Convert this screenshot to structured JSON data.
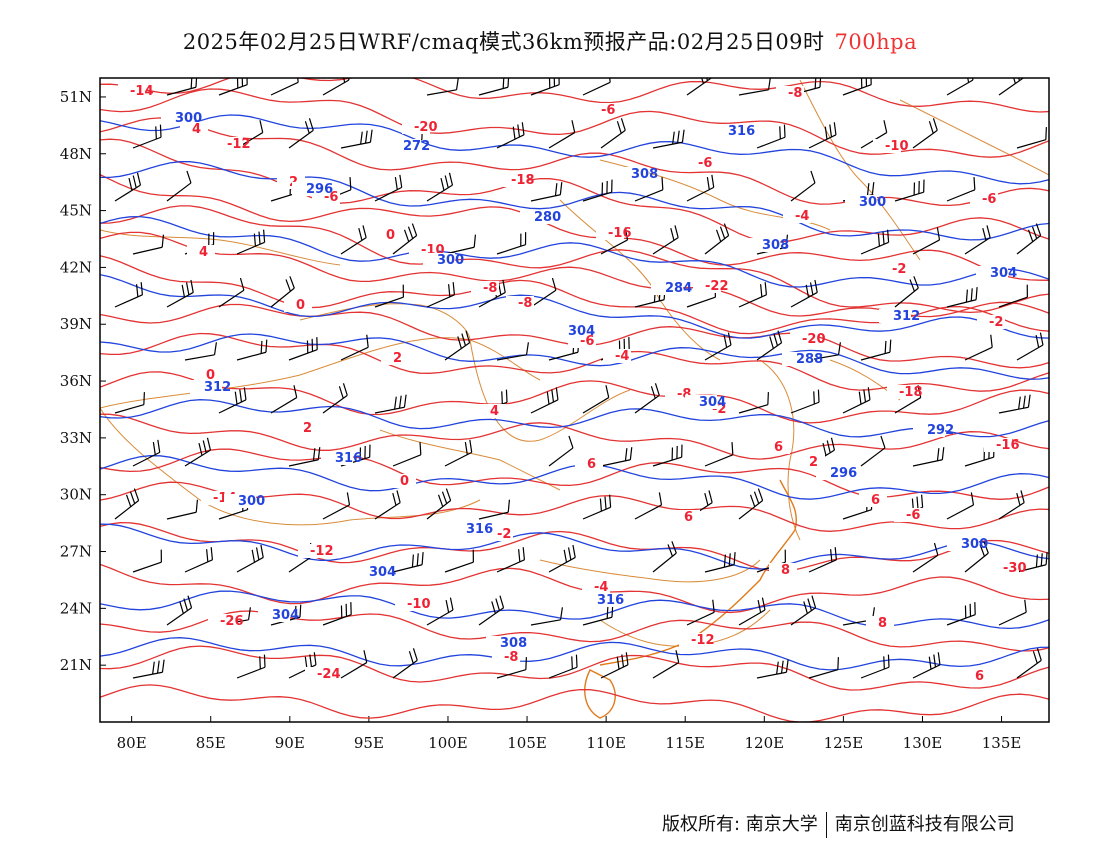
{
  "title": {
    "main": "2025年02月25日WRF/cmaq模式36km预报产品:02月25日09时",
    "level": "700hpa",
    "level_color": "#e33333"
  },
  "axes": {
    "lat_labels": [
      "51N",
      "48N",
      "45N",
      "42N",
      "39N",
      "36N",
      "33N",
      "30N",
      "27N",
      "24N",
      "21N"
    ],
    "lon_labels": [
      "80E",
      "85E",
      "90E",
      "95E",
      "100E",
      "105E",
      "110E",
      "115E",
      "120E",
      "125E",
      "130E",
      "135E"
    ]
  },
  "map": {
    "lon_range": [
      78,
      138
    ],
    "lat_range": [
      18,
      52
    ],
    "temperature_color": "#e33333",
    "height_color": "#2244dd",
    "border_color": "#d98c3a",
    "wind_barb_color": "#000000"
  },
  "isotherm_labels": [
    "-14",
    "-12",
    "-6",
    "-10",
    "-8",
    "-4",
    "-2",
    "2",
    "-6",
    "-30",
    "-26",
    "-24",
    "-20",
    "-18",
    "-16",
    "-22",
    "-20",
    "-18",
    "-16",
    "-14",
    "-12",
    "-10",
    "-8",
    "-6",
    "-6",
    "-4",
    "-2",
    "-2",
    "0",
    "2",
    "0",
    "-2",
    "-4",
    "-12",
    "-8",
    "-10",
    "-6",
    "4",
    "0",
    "2",
    "4",
    "6",
    "6",
    "8",
    "8",
    "6",
    "4",
    "2",
    "0",
    "-8",
    "-6",
    "-8",
    "6",
    "6"
  ],
  "height_labels": [
    "300",
    "296",
    "300",
    "304",
    "304",
    "296",
    "300",
    "304",
    "272",
    "280",
    "284",
    "288",
    "292",
    "300",
    "304",
    "308",
    "308",
    "308",
    "312",
    "312",
    "316",
    "316",
    "316",
    "316",
    "300",
    "304"
  ],
  "footer": {
    "left": "版权所有: 南京大学",
    "right": "南京创蓝科技有限公司"
  }
}
